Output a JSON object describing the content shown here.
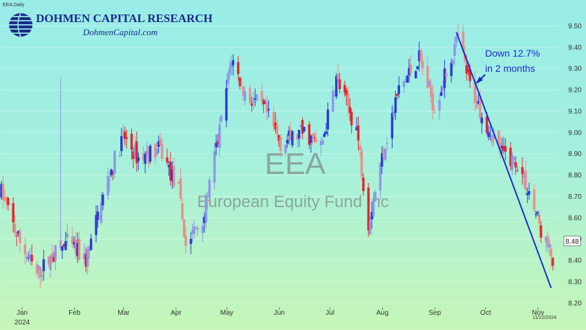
{
  "header": {
    "symbol_label": "EEA Daily",
    "brand_name": "DOHMEN CAPITAL RESEARCH",
    "brand_url": "DohmenCapital.com"
  },
  "watermark": {
    "ticker": "EEA",
    "name": "European Equity Fund Inc"
  },
  "annotation": {
    "line1": "Down 12.7%",
    "line2": "in 2 months"
  },
  "last_price": "8.48",
  "end_date": "11/22/2024",
  "colors": {
    "up": "#2a3ad8",
    "down": "#e8242a",
    "up_light": "#8d97e8",
    "down_light": "#e88e8a",
    "trendline": "#1c2bd0"
  },
  "chart_data": {
    "type": "candlestick",
    "title": "",
    "xlabel": "",
    "ylabel": "",
    "ylim": [
      8.18,
      9.55
    ],
    "yticks": [
      "9.50",
      "9.40",
      "9.30",
      "9.20",
      "9.10",
      "9.00",
      "8.90",
      "8.80",
      "8.70",
      "8.60",
      "8.50",
      "8.40",
      "8.30",
      "8.20"
    ],
    "xticks": [
      "Jan",
      "Feb",
      "Mar",
      "Apr",
      "May",
      "Jun",
      "Jul",
      "Aug",
      "Sep",
      "Oct",
      "Nov"
    ],
    "year_label": "2024",
    "anchors": [
      {
        "date": "2024-01-01",
        "price": 8.72
      },
      {
        "date": "2024-01-10",
        "price": 8.52
      },
      {
        "date": "2024-01-22",
        "price": 8.33
      },
      {
        "date": "2024-01-31",
        "price": 8.42
      },
      {
        "date": "2024-02-09",
        "price": 8.48
      },
      {
        "date": "2024-02-20",
        "price": 8.4
      },
      {
        "date": "2024-03-04",
        "price": 8.78
      },
      {
        "date": "2024-03-13",
        "price": 8.98
      },
      {
        "date": "2024-03-22",
        "price": 8.88
      },
      {
        "date": "2024-04-04",
        "price": 8.92
      },
      {
        "date": "2024-04-15",
        "price": 8.72
      },
      {
        "date": "2024-04-19",
        "price": 8.47
      },
      {
        "date": "2024-04-30",
        "price": 8.62
      },
      {
        "date": "2024-05-10",
        "price": 9.05
      },
      {
        "date": "2024-05-16",
        "price": 9.35
      },
      {
        "date": "2024-05-24",
        "price": 9.18
      },
      {
        "date": "2024-06-05",
        "price": 9.1
      },
      {
        "date": "2024-06-14",
        "price": 8.95
      },
      {
        "date": "2024-06-28",
        "price": 9.0
      },
      {
        "date": "2024-07-08",
        "price": 8.93
      },
      {
        "date": "2024-07-17",
        "price": 9.25
      },
      {
        "date": "2024-07-29",
        "price": 9.02
      },
      {
        "date": "2024-08-05",
        "price": 8.58
      },
      {
        "date": "2024-08-14",
        "price": 8.92
      },
      {
        "date": "2024-08-23",
        "price": 9.2
      },
      {
        "date": "2024-09-04",
        "price": 9.35
      },
      {
        "date": "2024-09-13",
        "price": 9.12
      },
      {
        "date": "2024-09-23",
        "price": 9.35
      },
      {
        "date": "2024-09-27",
        "price": 9.44
      },
      {
        "date": "2024-10-04",
        "price": 9.22
      },
      {
        "date": "2024-10-14",
        "price": 9.04
      },
      {
        "date": "2024-10-23",
        "price": 8.9
      },
      {
        "date": "2024-11-01",
        "price": 8.86
      },
      {
        "date": "2024-11-08",
        "price": 8.72
      },
      {
        "date": "2024-11-15",
        "price": 8.54
      },
      {
        "date": "2024-11-22",
        "price": 8.4
      }
    ],
    "trendline": {
      "start": {
        "date": "2024-09-26",
        "price": 9.47
      },
      "end": {
        "date": "2024-11-21",
        "price": 8.27
      }
    }
  }
}
